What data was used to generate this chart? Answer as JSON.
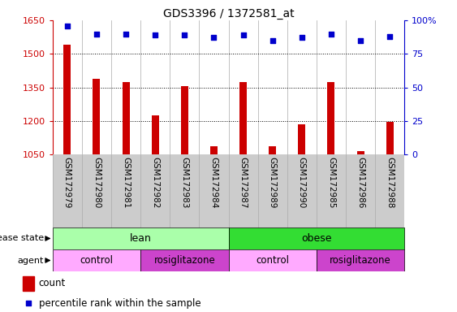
{
  "title": "GDS3396 / 1372581_at",
  "samples": [
    "GSM172979",
    "GSM172980",
    "GSM172981",
    "GSM172982",
    "GSM172983",
    "GSM172984",
    "GSM172987",
    "GSM172989",
    "GSM172990",
    "GSM172985",
    "GSM172986",
    "GSM172988"
  ],
  "counts": [
    1540,
    1390,
    1375,
    1225,
    1355,
    1085,
    1375,
    1085,
    1185,
    1375,
    1065,
    1195
  ],
  "percentile_ranks": [
    96,
    90,
    90,
    89,
    89,
    87,
    89,
    85,
    87,
    90,
    85,
    88
  ],
  "ylim_left": [
    1050,
    1650
  ],
  "ylim_right": [
    0,
    100
  ],
  "yticks_left": [
    1050,
    1200,
    1350,
    1500,
    1650
  ],
  "yticks_right": [
    0,
    25,
    50,
    75,
    100
  ],
  "bar_color": "#cc0000",
  "dot_color": "#0000cc",
  "disease_lean_color": "#aaffaa",
  "disease_obese_color": "#33dd33",
  "agent_control_color": "#ffaaff",
  "agent_rosi_color": "#cc44cc",
  "xtick_bg": "#cccccc",
  "bg_color": "#ffffff"
}
